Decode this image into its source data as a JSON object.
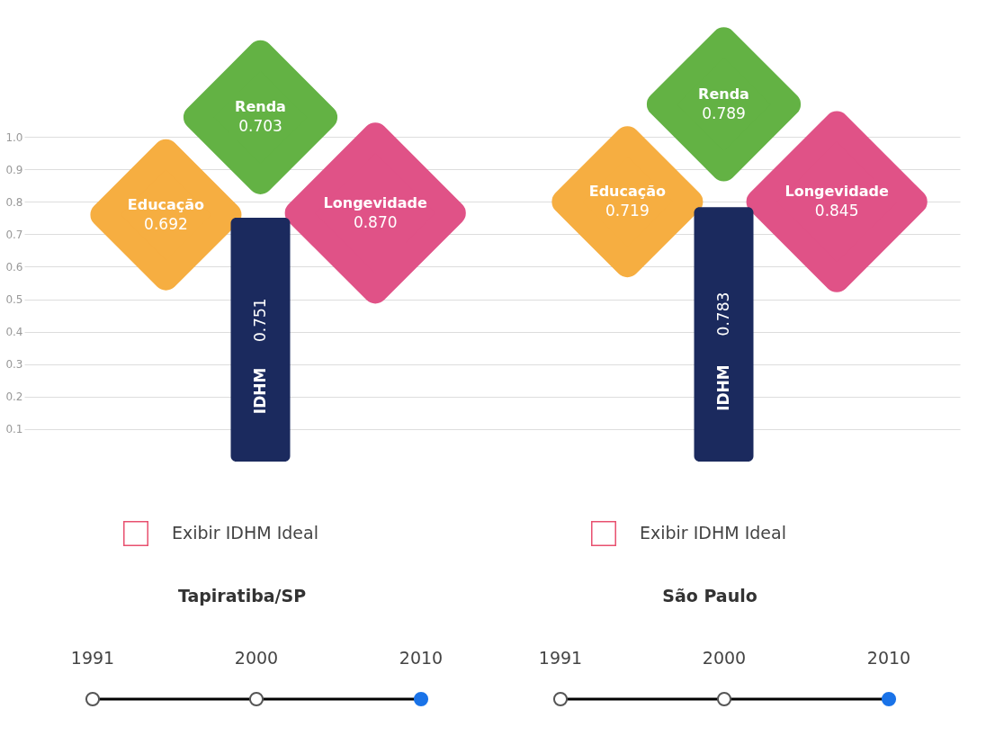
{
  "chart_data": {
    "type": "bar",
    "categories": [
      null,
      null
    ],
    "ylim": [
      0,
      1.0
    ],
    "yticks": [
      0.1,
      0.2,
      0.3,
      0.4,
      0.5,
      0.6,
      0.7,
      0.8,
      0.9,
      {
        "value": 1.0,
        "label": "1.0"
      }
    ],
    "grid": "y",
    "data_labels": true,
    "series": [
      {
        "name": "IDHM",
        "type": "bar",
        "color": "#1b2a5e",
        "values": [
          0.751,
          0.783
        ]
      }
    ],
    "annotations": [
      "Educação",
      "0.692",
      "Renda",
      "0.703",
      "Longevidade",
      "0.870",
      "Exibir IDHM Ideal",
      "Tapiratiba/SP",
      "1991",
      "2000",
      "2010",
      "Educação",
      "0.719",
      "Renda",
      "0.789",
      "Longevidade",
      "0.845",
      "Exibir IDHM Ideal",
      "São Paulo",
      "1991",
      "2000",
      "2010"
    ]
  }
}
